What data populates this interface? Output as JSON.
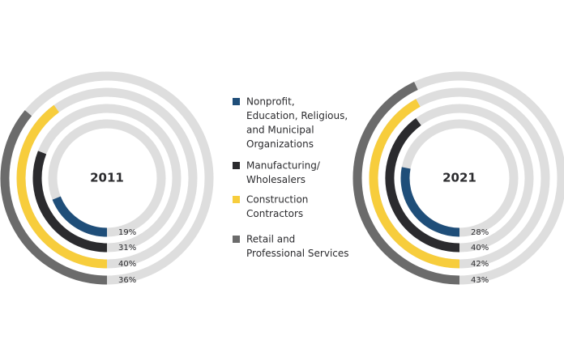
{
  "legend": [
    {
      "lines": [
        "Nonprofit,",
        "Education, Religious,",
        "and Municipal",
        "Organizations"
      ],
      "color": "#1f4e79"
    },
    {
      "lines": [
        "Manufacturing/",
        "Wholesalers"
      ],
      "color": "#2b2b2e"
    },
    {
      "lines": [
        "Construction",
        "Contractors"
      ],
      "color": "#f7cd3c"
    },
    {
      "lines": [
        "Retail and",
        "Professional Services"
      ],
      "color": "#6b6b6b"
    }
  ],
  "chart_data": [
    {
      "type": "radial-bar",
      "title": "2011",
      "ylim": [
        0,
        100
      ],
      "values": [
        19,
        31,
        40,
        36
      ],
      "value_labels": [
        "19%",
        "31%",
        "40%",
        "36%"
      ]
    },
    {
      "type": "radial-bar",
      "title": "2021",
      "ylim": [
        0,
        100
      ],
      "values": [
        28,
        40,
        42,
        43
      ],
      "value_labels": [
        "28%",
        "40%",
        "42%",
        "43%"
      ]
    }
  ]
}
